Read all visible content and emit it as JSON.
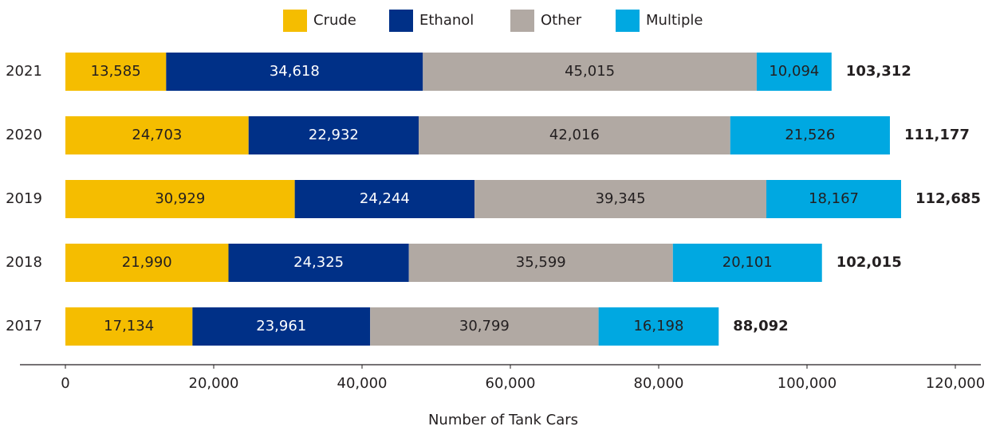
{
  "chart_data": {
    "type": "stacked-barh",
    "categories": [
      "2021",
      "2020",
      "2019",
      "2018",
      "2017"
    ],
    "series": [
      {
        "name": "Crude",
        "color": "#f5bd00",
        "label_color": "#231f20",
        "values": [
          13585,
          24703,
          30929,
          21990,
          17134
        ],
        "value_labels": [
          "13,585",
          "24,703",
          "30,929",
          "21,990",
          "17,134"
        ]
      },
      {
        "name": "Ethanol",
        "color": "#003087",
        "label_color": "#ffffff",
        "values": [
          34618,
          22932,
          24244,
          24325,
          23961
        ],
        "value_labels": [
          "34,618",
          "22,932",
          "24,244",
          "24,325",
          "23,961"
        ]
      },
      {
        "name": "Other",
        "color": "#b1a9a3",
        "label_color": "#231f20",
        "values": [
          45015,
          42016,
          39345,
          35599,
          30799
        ],
        "value_labels": [
          "45,015",
          "42,016",
          "39,345",
          "35,599",
          "30,799"
        ]
      },
      {
        "name": "Multiple",
        "color": "#00a8e1",
        "label_color": "#231f20",
        "values": [
          10094,
          21526,
          18167,
          20101,
          16198
        ],
        "value_labels": [
          "10,094",
          "21,526",
          "18,167",
          "20,101",
          "16,198"
        ]
      }
    ],
    "totals": [
      103312,
      111177,
      112685,
      102015,
      88092
    ],
    "total_labels": [
      "103,312",
      "111,177",
      "112,685",
      "102,015",
      "88,092"
    ],
    "x_label": "Number of Tank Cars",
    "xlim": [
      0,
      120000
    ],
    "xticks": [
      0,
      {
        "value": 20000,
        "label": "20,000"
      },
      {
        "value": 40000,
        "label": "40,000"
      },
      {
        "value": 60000,
        "label": "60,000"
      },
      {
        "value": 80000,
        "label": "80,000"
      },
      {
        "value": 100000,
        "label": "100,000"
      },
      {
        "value": 120000,
        "label": "120,000"
      }
    ],
    "legend": "top",
    "grid": false
  }
}
